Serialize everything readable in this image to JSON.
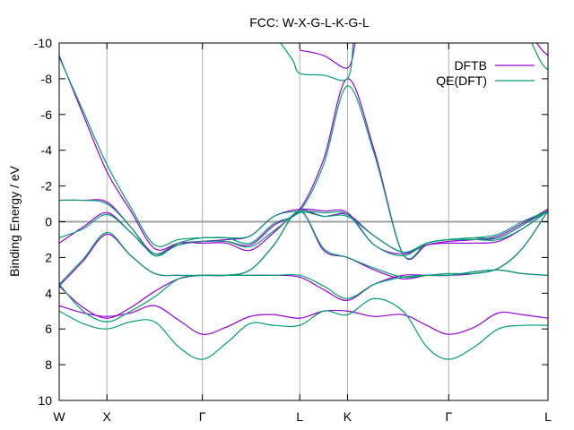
{
  "chart_data": {
    "type": "line",
    "title": "FCC: W-X-G-L-K-G-L",
    "xlabel": "",
    "ylabel": "Binding Energy / eV",
    "ylim": [
      10,
      -10
    ],
    "yticks": [
      {
        "value": -10,
        "label": "-10"
      },
      {
        "value": -8,
        "label": "-8"
      },
      {
        "value": -6,
        "label": "-6"
      },
      {
        "value": -4,
        "label": "-4"
      },
      {
        "value": -2,
        "label": "-2"
      },
      {
        "value": 0,
        "label": "0"
      },
      {
        "value": 2,
        "label": "2"
      },
      {
        "value": 4,
        "label": "4"
      },
      {
        "value": 6,
        "label": "6"
      },
      {
        "value": 8,
        "label": "8"
      },
      {
        "value": 10,
        "label": "10"
      }
    ],
    "xlim": [
      0,
      5.12
    ],
    "xticks": [
      {
        "value": 0,
        "label": "W"
      },
      {
        "value": 0.5,
        "label": "X"
      },
      {
        "value": 1.5,
        "label": "Γ"
      },
      {
        "value": 2.52,
        "label": "L"
      },
      {
        "value": 3.02,
        "label": "K"
      },
      {
        "value": 4.08,
        "label": "Γ"
      },
      {
        "value": 5.12,
        "label": "L"
      }
    ],
    "grid": "vertical lines at high-symmetry points",
    "legend": "top-right",
    "fermi_level": 0,
    "series": [
      {
        "name": "DFTB",
        "color": "#9400d3",
        "bands": [
          {
            "x": [
              0,
              0.25,
              0.5,
              0.75,
              1.0,
              1.25,
              1.5,
              1.75,
              2.0,
              2.25,
              2.52,
              2.77,
              3.02,
              3.3,
              3.6,
              3.85,
              4.08,
              4.35,
              4.6,
              4.85,
              5.12
            ],
            "y": [
              4.7,
              5.1,
              5.3,
              5.1,
              4.7,
              5.5,
              6.3,
              5.9,
              5.3,
              5.2,
              5.4,
              5.0,
              5.0,
              5.3,
              5.2,
              5.8,
              6.3,
              5.9,
              5.1,
              5.2,
              5.4
            ]
          },
          {
            "x": [
              0,
              0.25,
              0.5,
              0.75,
              1.0,
              1.25,
              1.5,
              1.75,
              2.0,
              2.25,
              2.52,
              2.77,
              3.02,
              3.3,
              3.6,
              3.85,
              4.08,
              4.35,
              4.6,
              4.85,
              5.12
            ],
            "y": [
              3.6,
              4.8,
              5.4,
              4.8,
              3.9,
              3.2,
              3.0,
              3.0,
              3.0,
              3.0,
              3.1,
              3.8,
              4.4,
              3.5,
              3.0,
              3.0,
              3.0,
              2.8,
              2.7,
              2.9,
              3.0
            ]
          },
          {
            "x": [
              0,
              0.25,
              0.5,
              0.75,
              1.0,
              1.25,
              1.5,
              1.75,
              2.0,
              2.25,
              2.52,
              2.77,
              3.02,
              3.3,
              3.6,
              3.85,
              4.08,
              4.35,
              4.6,
              4.85,
              5.12
            ],
            "y": [
              3.6,
              2.2,
              0.7,
              1.9,
              2.9,
              3.0,
              3.0,
              3.0,
              2.7,
              1.3,
              -0.6,
              1.6,
              2.0,
              2.7,
              3.2,
              3.0,
              3.0,
              2.9,
              2.6,
              1.5,
              -0.6
            ]
          },
          {
            "x": [
              0,
              0.25,
              0.5,
              0.75,
              1.0,
              1.25,
              1.5,
              1.75,
              2.0,
              2.25,
              2.52,
              2.77,
              3.02,
              3.3,
              3.6,
              3.85,
              4.08,
              4.35,
              4.6,
              4.85,
              5.12
            ],
            "y": [
              1.2,
              0.3,
              -0.5,
              0.6,
              1.8,
              1.2,
              1.2,
              1.2,
              1.6,
              0.6,
              -0.6,
              -0.3,
              -0.4,
              0.8,
              1.7,
              1.3,
              1.2,
              1.2,
              1.1,
              0.4,
              -0.6
            ]
          },
          {
            "x": [
              0,
              0.25,
              0.5,
              0.75,
              1.0,
              1.25,
              1.5,
              1.75,
              2.0,
              2.25,
              2.52,
              2.77,
              3.02,
              3.3,
              3.6,
              3.85,
              4.08,
              4.35,
              4.6,
              4.85,
              5.12
            ],
            "y": [
              -1.2,
              -1.2,
              -1.1,
              0.3,
              1.8,
              1.3,
              1.1,
              1.0,
              0.8,
              -0.3,
              -0.7,
              -0.6,
              -0.5,
              1.3,
              1.8,
              1.3,
              1.1,
              1.0,
              0.9,
              0.2,
              -0.7
            ]
          },
          {
            "x": [
              0,
              0.25,
              0.5,
              0.75,
              1.0,
              1.25,
              1.5,
              1.75,
              2.0,
              2.25,
              2.52,
              2.77,
              3.02,
              3.3,
              3.6,
              3.85,
              4.08,
              4.35,
              4.6,
              4.85,
              5.12
            ],
            "y": [
              -9.3,
              -6.0,
              -2.8,
              -0.6,
              1.5,
              1.2,
              1.1,
              1.1,
              1.3,
              0.2,
              -0.7,
              -3.5,
              -8.0,
              -4.0,
              1.8,
              1.3,
              1.1,
              1.0,
              0.8,
              0.1,
              -0.7
            ]
          },
          {
            "x": [
              2.52,
              2.77,
              3.02,
              3.1
            ],
            "y": [
              -9.6,
              -9.3,
              -8.6,
              -10.0
            ]
          },
          {
            "x": [
              5.0,
              5.06,
              5.12
            ],
            "y": [
              -10.0,
              -9.6,
              -9.3
            ]
          }
        ]
      },
      {
        "name": "QE(DFT)",
        "color": "#009e73",
        "bands": [
          {
            "x": [
              0,
              0.25,
              0.5,
              0.75,
              1.0,
              1.25,
              1.5,
              1.75,
              2.0,
              2.25,
              2.52,
              2.77,
              3.02,
              3.3,
              3.6,
              3.85,
              4.08,
              4.35,
              4.6,
              4.85,
              5.12
            ],
            "y": [
              5.0,
              5.7,
              6.0,
              5.6,
              5.6,
              7.0,
              7.7,
              6.8,
              5.7,
              5.8,
              5.8,
              5.0,
              5.2,
              4.3,
              5.0,
              7.0,
              7.7,
              7.0,
              6.0,
              5.8,
              5.8
            ]
          },
          {
            "x": [
              0,
              0.25,
              0.5,
              0.75,
              1.0,
              1.25,
              1.5,
              1.75,
              2.0,
              2.25,
              2.52,
              2.77,
              3.02,
              3.3,
              3.6,
              3.85,
              4.08,
              4.35,
              4.6,
              4.85,
              5.12
            ],
            "y": [
              3.5,
              5.0,
              5.6,
              5.0,
              4.2,
              3.2,
              3.0,
              3.0,
              3.0,
              3.0,
              3.0,
              3.6,
              4.3,
              3.5,
              3.1,
              3.0,
              3.0,
              2.8,
              2.7,
              2.9,
              3.0
            ]
          },
          {
            "x": [
              0,
              0.25,
              0.5,
              0.75,
              1.0,
              1.25,
              1.5,
              1.75,
              2.0,
              2.25,
              2.52,
              2.77,
              3.02,
              3.3,
              3.6,
              3.85,
              4.08,
              4.35,
              4.6,
              4.85,
              5.12
            ],
            "y": [
              3.5,
              2.1,
              0.6,
              1.9,
              2.9,
              3.0,
              3.0,
              3.0,
              2.7,
              1.3,
              -0.6,
              1.5,
              2.0,
              2.6,
              3.1,
              3.0,
              2.9,
              2.9,
              2.6,
              1.5,
              -0.6
            ]
          },
          {
            "x": [
              0,
              0.25,
              0.5,
              0.75,
              1.0,
              1.25,
              1.5,
              1.75,
              2.0,
              2.25,
              2.52,
              2.77,
              3.02,
              3.3,
              3.6,
              3.85,
              4.08,
              4.35,
              4.6,
              4.85,
              5.12
            ],
            "y": [
              0.9,
              0.4,
              -0.4,
              0.6,
              1.8,
              1.3,
              1.1,
              1.1,
              1.4,
              0.5,
              -0.5,
              -0.3,
              -0.3,
              0.8,
              1.7,
              1.2,
              1.0,
              1.0,
              1.0,
              0.4,
              -0.6
            ]
          },
          {
            "x": [
              0,
              0.25,
              0.5,
              0.75,
              1.0,
              1.25,
              1.5,
              1.75,
              2.0,
              2.25,
              2.52,
              2.77,
              3.02,
              3.3,
              3.6,
              3.85,
              4.08,
              4.35,
              4.6,
              4.85,
              5.12
            ],
            "y": [
              -1.2,
              -1.2,
              -1.0,
              0.3,
              1.9,
              1.2,
              0.9,
              0.9,
              0.8,
              -0.3,
              -0.6,
              -0.5,
              -0.4,
              1.3,
              1.9,
              1.2,
              1.0,
              0.9,
              0.9,
              0.2,
              -0.6
            ]
          },
          {
            "x": [
              0,
              0.25,
              0.5,
              0.75,
              1.0,
              1.25,
              1.5,
              1.75,
              2.0,
              2.25,
              2.52,
              2.77,
              3.02,
              3.3,
              3.6,
              3.85,
              4.08,
              4.35,
              4.6,
              4.85,
              5.12
            ],
            "y": [
              -9.2,
              -6.2,
              -3.2,
              -0.8,
              1.3,
              1.0,
              0.9,
              0.9,
              1.2,
              0.1,
              -0.6,
              -3.2,
              -7.6,
              -3.8,
              1.8,
              1.2,
              1.0,
              0.9,
              0.7,
              0.0,
              -0.6
            ]
          },
          {
            "x": [
              2.32,
              2.45,
              2.52,
              2.77,
              3.02,
              3.08
            ],
            "y": [
              -10.0,
              -9.0,
              -8.3,
              -8.2,
              -8.0,
              -10.0
            ]
          },
          {
            "x": [
              4.95,
              5.05,
              5.12
            ],
            "y": [
              -10.0,
              -8.9,
              -8.5
            ]
          }
        ]
      }
    ]
  }
}
